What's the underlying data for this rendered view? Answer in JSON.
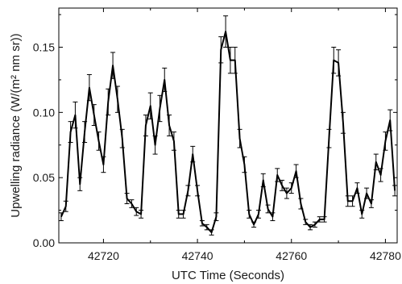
{
  "chart_data": {
    "type": "line",
    "title": "",
    "xlabel": "UTC Time (Seconds)",
    "ylabel": "Upwelling radiance (W/(m² nm sr))",
    "xlim": [
      42710.5,
      42782.5
    ],
    "ylim": [
      0.0,
      0.18
    ],
    "x_ticks": [
      42720,
      42740,
      42760,
      42780
    ],
    "y_ticks": [
      0.0,
      0.05,
      0.1,
      0.15
    ],
    "x_tick_labels": [
      "42720",
      "42740",
      "42760",
      "42780"
    ],
    "y_tick_labels": [
      "0.00",
      "0.05",
      "0.10",
      "0.15"
    ],
    "grid": false,
    "line_color": "#000000",
    "series": [
      {
        "x": [
          42711,
          42712,
          42713,
          42714,
          42715,
          42716,
          42717,
          42718,
          42719,
          42720,
          42721,
          42722,
          42723,
          42724,
          42725,
          42726,
          42727,
          42728,
          42729,
          42730,
          42731,
          42732,
          42733,
          42734,
          42735,
          42736,
          42737,
          42738,
          42739,
          42740,
          42741,
          42742,
          42743,
          42744,
          42745,
          42746,
          42747,
          42748,
          42749,
          42750,
          42751,
          42752,
          42753,
          42754,
          42755,
          42756,
          42757,
          42758,
          42759,
          42760,
          42761,
          42762,
          42763,
          42764,
          42765,
          42766,
          42767,
          42768,
          42769,
          42770,
          42771,
          42772,
          42773,
          42774,
          42775,
          42776,
          42777,
          42778,
          42779,
          42780,
          42781,
          42782
        ],
        "y": [
          0.02,
          0.028,
          0.085,
          0.098,
          0.045,
          0.085,
          0.119,
          0.098,
          0.078,
          0.06,
          0.108,
          0.136,
          0.11,
          0.08,
          0.034,
          0.03,
          0.024,
          0.022,
          0.09,
          0.105,
          0.075,
          0.103,
          0.125,
          0.09,
          0.078,
          0.022,
          0.022,
          0.04,
          0.068,
          0.04,
          0.015,
          0.012,
          0.008,
          0.02,
          0.148,
          0.162,
          0.14,
          0.14,
          0.08,
          0.06,
          0.022,
          0.014,
          0.022,
          0.048,
          0.026,
          0.02,
          0.052,
          0.044,
          0.038,
          0.042,
          0.055,
          0.03,
          0.016,
          0.012,
          0.014,
          0.018,
          0.018,
          0.08,
          0.14,
          0.138,
          0.092,
          0.032,
          0.032,
          0.042,
          0.022,
          0.038,
          0.03,
          0.062,
          0.052,
          0.078,
          0.094,
          0.04
        ],
        "err": [
          0.003,
          0.004,
          0.008,
          0.01,
          0.005,
          0.008,
          0.01,
          0.008,
          0.007,
          0.006,
          0.01,
          0.01,
          0.01,
          0.007,
          0.004,
          0.003,
          0.003,
          0.003,
          0.008,
          0.01,
          0.007,
          0.01,
          0.009,
          0.008,
          0.007,
          0.003,
          0.003,
          0.004,
          0.006,
          0.004,
          0.002,
          0.002,
          0.002,
          0.003,
          0.01,
          0.012,
          0.01,
          0.01,
          0.007,
          0.006,
          0.003,
          0.002,
          0.003,
          0.005,
          0.003,
          0.003,
          0.005,
          0.004,
          0.004,
          0.004,
          0.005,
          0.004,
          0.002,
          0.002,
          0.002,
          0.002,
          0.002,
          0.007,
          0.01,
          0.01,
          0.008,
          0.004,
          0.004,
          0.004,
          0.003,
          0.004,
          0.003,
          0.006,
          0.005,
          0.007,
          0.008,
          0.004
        ]
      }
    ]
  }
}
